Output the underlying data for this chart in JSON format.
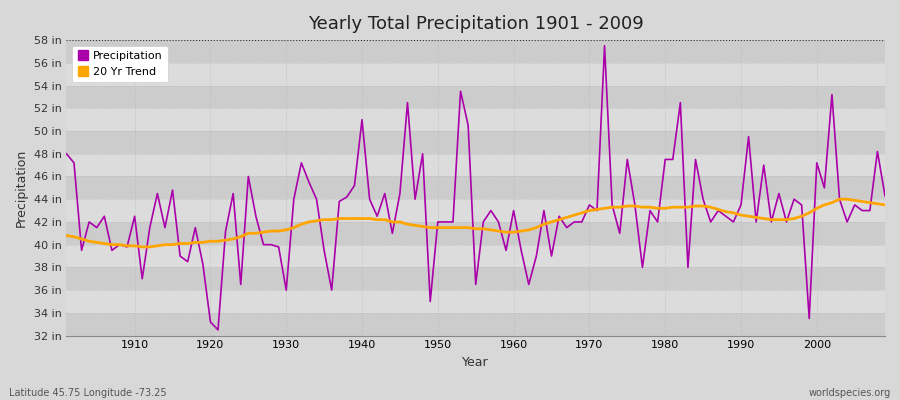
{
  "title": "Yearly Total Precipitation 1901 - 2009",
  "xlabel": "Year",
  "ylabel": "Precipitation",
  "subtitle": "Latitude 45.75 Longitude -73.25",
  "watermark": "worldspecies.org",
  "legend_labels": [
    "Precipitation",
    "20 Yr Trend"
  ],
  "precip_color": "#AA00AA",
  "trend_color": "#FFA500",
  "background_color": "#D8D8D8",
  "band_color1": "#CCCCCC",
  "band_color2": "#DCDCDC",
  "ylim": [
    32,
    58
  ],
  "yticks": [
    32,
    34,
    36,
    38,
    40,
    42,
    44,
    46,
    48,
    50,
    52,
    54,
    56,
    58
  ],
  "ytick_labels": [
    "32 in",
    "34 in",
    "36 in",
    "38 in",
    "40 in",
    "42 in",
    "44 in",
    "46 in",
    "48 in",
    "50 in",
    "52 in",
    "54 in",
    "56 in",
    "58 in"
  ],
  "xticks": [
    1910,
    1920,
    1930,
    1940,
    1950,
    1960,
    1970,
    1980,
    1990,
    2000
  ],
  "xlim": [
    1901,
    2009
  ],
  "years": [
    1901,
    1902,
    1903,
    1904,
    1905,
    1906,
    1907,
    1908,
    1909,
    1910,
    1911,
    1912,
    1913,
    1914,
    1915,
    1916,
    1917,
    1918,
    1919,
    1920,
    1921,
    1922,
    1923,
    1924,
    1925,
    1926,
    1927,
    1928,
    1929,
    1930,
    1931,
    1932,
    1933,
    1934,
    1935,
    1936,
    1937,
    1938,
    1939,
    1940,
    1941,
    1942,
    1943,
    1944,
    1945,
    1946,
    1947,
    1948,
    1949,
    1950,
    1951,
    1952,
    1953,
    1954,
    1955,
    1956,
    1957,
    1958,
    1959,
    1960,
    1961,
    1962,
    1963,
    1964,
    1965,
    1966,
    1967,
    1968,
    1969,
    1970,
    1971,
    1972,
    1973,
    1974,
    1975,
    1976,
    1977,
    1978,
    1979,
    1980,
    1981,
    1982,
    1983,
    1984,
    1985,
    1986,
    1987,
    1988,
    1989,
    1990,
    1991,
    1992,
    1993,
    1994,
    1995,
    1996,
    1997,
    1998,
    1999,
    2000,
    2001,
    2002,
    2003,
    2004,
    2005,
    2006,
    2007,
    2008,
    2009
  ],
  "precipitation": [
    48.0,
    47.2,
    39.5,
    42.0,
    41.5,
    42.5,
    39.5,
    40.0,
    39.8,
    42.5,
    37.0,
    41.5,
    44.5,
    41.5,
    44.8,
    39.0,
    38.5,
    41.5,
    38.3,
    33.2,
    32.5,
    41.2,
    44.5,
    36.5,
    46.0,
    42.5,
    40.0,
    40.0,
    39.8,
    36.0,
    44.0,
    47.2,
    45.5,
    44.0,
    39.5,
    36.0,
    43.8,
    44.2,
    45.2,
    51.0,
    44.0,
    42.5,
    44.5,
    41.0,
    44.5,
    52.5,
    44.0,
    48.0,
    35.0,
    42.0,
    42.0,
    42.0,
    53.5,
    50.5,
    36.5,
    42.0,
    43.0,
    42.0,
    39.5,
    43.0,
    39.5,
    36.5,
    39.0,
    43.0,
    39.0,
    42.5,
    41.5,
    42.0,
    42.0,
    43.5,
    43.0,
    57.5,
    43.5,
    41.0,
    47.5,
    43.5,
    38.0,
    43.0,
    42.0,
    47.5,
    47.5,
    52.5,
    38.0,
    47.5,
    44.0,
    42.0,
    43.0,
    42.5,
    42.0,
    43.5,
    49.5,
    42.0,
    47.0,
    42.0,
    44.5,
    42.0,
    44.0,
    43.5,
    33.5,
    47.2,
    45.0,
    53.2,
    44.0,
    42.0,
    43.5,
    43.0,
    43.0,
    48.2,
    44.3
  ],
  "trend": [
    40.8,
    40.7,
    40.5,
    40.3,
    40.2,
    40.1,
    40.0,
    40.0,
    39.9,
    39.9,
    39.8,
    39.8,
    39.9,
    40.0,
    40.0,
    40.1,
    40.1,
    40.2,
    40.2,
    40.3,
    40.3,
    40.4,
    40.5,
    40.7,
    41.0,
    41.0,
    41.1,
    41.2,
    41.2,
    41.3,
    41.5,
    41.8,
    42.0,
    42.1,
    42.2,
    42.2,
    42.3,
    42.3,
    42.3,
    42.3,
    42.3,
    42.2,
    42.2,
    42.0,
    42.0,
    41.8,
    41.7,
    41.6,
    41.5,
    41.5,
    41.5,
    41.5,
    41.5,
    41.5,
    41.4,
    41.4,
    41.3,
    41.2,
    41.1,
    41.1,
    41.2,
    41.3,
    41.5,
    41.8,
    42.0,
    42.2,
    42.4,
    42.6,
    42.8,
    43.0,
    43.1,
    43.2,
    43.3,
    43.3,
    43.4,
    43.4,
    43.3,
    43.3,
    43.2,
    43.2,
    43.3,
    43.3,
    43.3,
    43.4,
    43.4,
    43.3,
    43.1,
    42.9,
    42.8,
    42.6,
    42.5,
    42.4,
    42.3,
    42.2,
    42.2,
    42.2,
    42.3,
    42.5,
    42.8,
    43.2,
    43.5,
    43.7,
    44.0,
    44.0,
    43.9,
    43.8,
    43.7,
    43.6,
    43.5
  ]
}
